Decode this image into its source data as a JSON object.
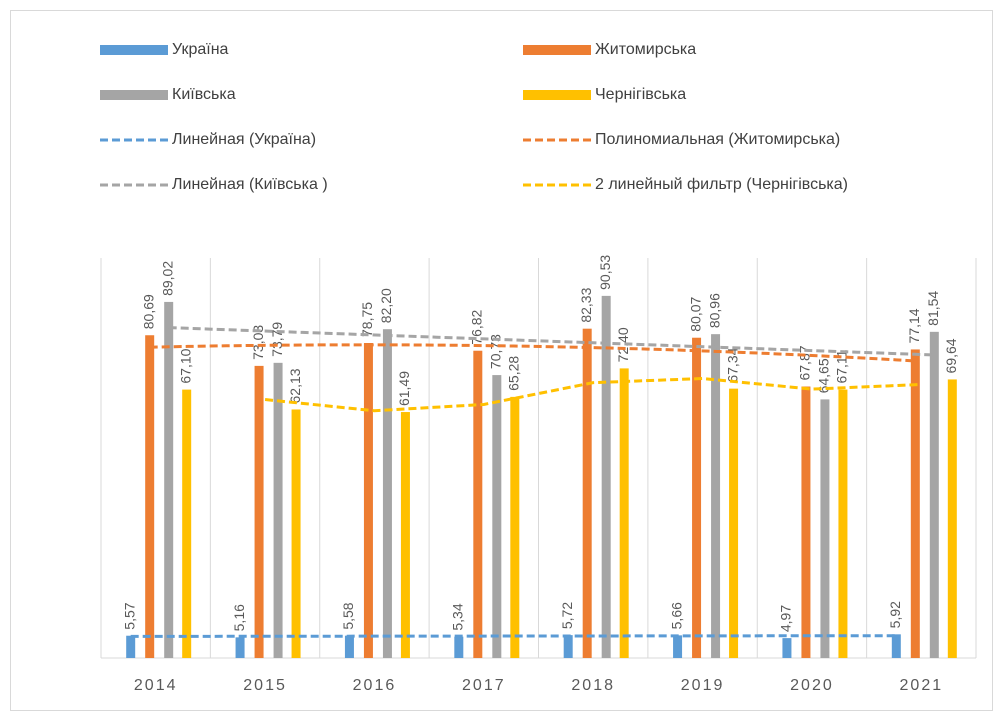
{
  "chart_data": {
    "type": "bar",
    "categories": [
      "2014",
      "2015",
      "2016",
      "2017",
      "2018",
      "2019",
      "2020",
      "2021"
    ],
    "series": [
      {
        "name": "Україна",
        "color": "#5b9bd5",
        "values": [
          5.57,
          5.16,
          5.58,
          5.34,
          5.72,
          5.66,
          4.97,
          5.92
        ],
        "value_labels": [
          "5,57",
          "5,16",
          "5,58",
          "5,34",
          "5,72",
          "5,66",
          "4,97",
          "5,92"
        ]
      },
      {
        "name": "Житомирська",
        "color": "#ed7d31",
        "values": [
          80.69,
          73.03,
          78.75,
          76.82,
          82.33,
          80.07,
          67.87,
          77.14
        ],
        "value_labels": [
          "80,69",
          "73,03",
          "78,75",
          "76,82",
          "82,33",
          "80,07",
          "67,87",
          "77,14"
        ]
      },
      {
        "name": "Київська",
        "color": "#a5a5a5",
        "values": [
          89.02,
          73.79,
          82.2,
          70.73,
          90.53,
          80.96,
          64.65,
          81.54
        ],
        "value_labels": [
          "89,02",
          "73,79",
          "82,20",
          "70,73",
          "90,53",
          "80,96",
          "64,65",
          "81,54"
        ]
      },
      {
        "name": "Чернігівська",
        "color": "#ffc000",
        "values": [
          67.1,
          62.13,
          61.49,
          65.28,
          72.4,
          67.34,
          67.11,
          69.64
        ],
        "value_labels": [
          "67,10",
          "62,13",
          "61,49",
          "65,28",
          "72,40",
          "67,34",
          "67,11",
          "69,64"
        ]
      }
    ],
    "trendlines": [
      {
        "name": "Линейная (Україна)",
        "series": 0,
        "kind": "linear"
      },
      {
        "name": "Полиномиальная (Житомирська)",
        "series": 1,
        "kind": "polynomial"
      },
      {
        "name": "Линейная (Київська )",
        "series": 2,
        "kind": "linear"
      },
      {
        "name": "2 линейный фильтр (Чернігівська)",
        "series": 3,
        "kind": "moving_average",
        "period": 2
      }
    ],
    "ylim": [
      0,
      100
    ],
    "grid": true,
    "legend": "top"
  }
}
